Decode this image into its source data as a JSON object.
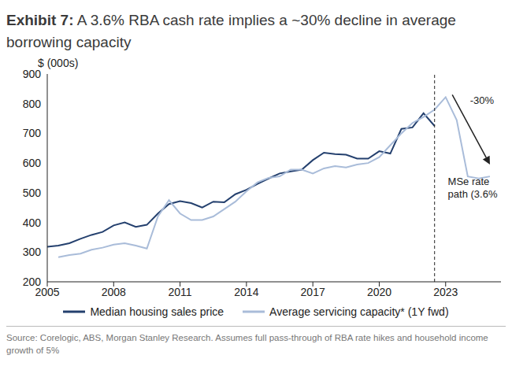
{
  "chart_data": {
    "type": "line",
    "title": "Exhibit 7:  A 3.6% RBA cash rate implies a ~30% decline in average borrowing capacity",
    "y_label": "$ (000s)",
    "source": "Source: Corelogic, ABS, Morgan Stanley Research. Assumes full pass-through of RBA rate hikes and household income growth of 5%",
    "x": [
      2005,
      2005.5,
      2006,
      2006.5,
      2007,
      2007.5,
      2008,
      2008.5,
      2009,
      2009.5,
      2010,
      2010.5,
      2011,
      2011.5,
      2012,
      2012.5,
      2013,
      2013.5,
      2014,
      2014.5,
      2015,
      2015.5,
      2016,
      2016.5,
      2017,
      2017.5,
      2018,
      2018.5,
      2019,
      2019.5,
      2020,
      2020.5,
      2021,
      2021.5,
      2022,
      2022.5,
      2023,
      2023.5,
      2024,
      2024.5,
      2025
    ],
    "series": [
      {
        "name": "Median housing sales price",
        "color": "#24406e",
        "line_style": "solid",
        "values": [
          318,
          322,
          330,
          345,
          358,
          368,
          390,
          400,
          385,
          392,
          430,
          462,
          472,
          465,
          450,
          470,
          468,
          495,
          510,
          530,
          548,
          565,
          572,
          578,
          610,
          635,
          630,
          628,
          615,
          615,
          640,
          632,
          715,
          720,
          768,
          725,
          null,
          null,
          null,
          null,
          null
        ]
      },
      {
        "name": "Average servicing capacity* (1Y fwd)",
        "color": "#a9bcd9",
        "line_style": "solid",
        "values": [
          null,
          283,
          290,
          295,
          308,
          315,
          325,
          330,
          322,
          312,
          420,
          475,
          430,
          408,
          408,
          420,
          445,
          470,
          505,
          535,
          550,
          555,
          578,
          578,
          565,
          582,
          590,
          585,
          595,
          600,
          620,
          660,
          700,
          735,
          755,
          780,
          822,
          745,
          555,
          548,
          555
        ]
      }
    ],
    "xlim": [
      2005,
      2025.5
    ],
    "xticks": [
      2005,
      2008,
      2011,
      2014,
      2017,
      2020,
      2023
    ],
    "ylim": [
      200,
      900
    ],
    "yticks": [
      200,
      300,
      400,
      500,
      600,
      700,
      800,
      900
    ],
    "grid": false,
    "legend": "bottom",
    "reference_line_x": 2022.5,
    "arrow": {
      "x1": 2023.3,
      "y1": 830,
      "x2": 2025,
      "y2": 595
    },
    "annotations": [
      {
        "text": "-30%",
        "x": 2024.1,
        "y": 800
      },
      {
        "text": "MSe rate path (3.6%",
        "x": 2023.1,
        "y": 525
      }
    ]
  }
}
